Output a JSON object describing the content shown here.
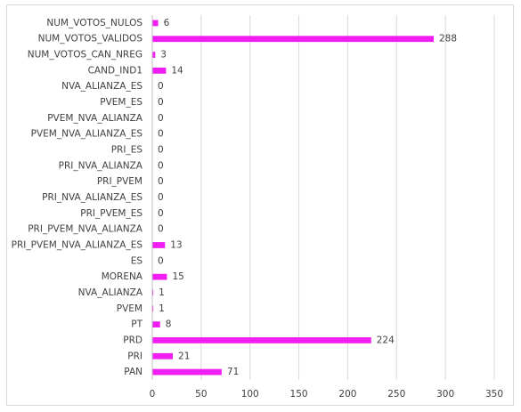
{
  "chart_data": {
    "type": "bar",
    "orientation": "horizontal",
    "categories": [
      "NUM_VOTOS_NULOS",
      "NUM_VOTOS_VALIDOS",
      "NUM_VOTOS_CAN_NREG",
      "CAND_IND1",
      "NVA_ALIANZA_ES",
      "PVEM_ES",
      "PVEM_NVA_ALIANZA",
      "PVEM_NVA_ALIANZA_ES",
      "PRI_ES",
      "PRI_NVA_ALIANZA",
      "PRI_PVEM",
      "PRI_NVA_ALIANZA_ES",
      "PRI_PVEM_ES",
      "PRI_PVEM_NVA_ALIANZA",
      "PRI_PVEM_NVA_ALIANZA_ES",
      "ES",
      "MORENA",
      "NVA_ALIANZA",
      "PVEM",
      "PT",
      "PRD",
      "PRI",
      "PAN"
    ],
    "values": [
      6,
      288,
      3,
      14,
      0,
      0,
      0,
      0,
      0,
      0,
      0,
      0,
      0,
      0,
      13,
      0,
      15,
      1,
      1,
      8,
      224,
      21,
      71
    ],
    "color": "#f01ef0",
    "xlim": [
      0,
      350
    ],
    "xticks": [
      0,
      50,
      100,
      150,
      200,
      250,
      300,
      350
    ],
    "grid": true
  }
}
